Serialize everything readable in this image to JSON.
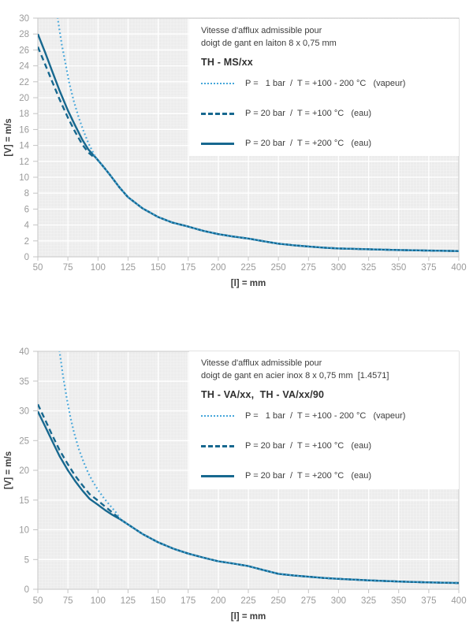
{
  "colors": {
    "plot_bg": "#ececec",
    "grid_minor": "#ffffff",
    "grid_major": "#ffffff",
    "frame": "#c4c4c4",
    "tick_label": "#9a9a9a",
    "axis_title": "#3c3c3c",
    "legend_text": "#3c3c3c",
    "line_dark": "#17688f",
    "line_light": "#45a6da"
  },
  "chart_data": [
    {
      "type": "line",
      "title_line1": "Vitesse d'afflux admissible pour",
      "title_line2": "doigt de gant en laiton 8 x 0,75 mm",
      "model": "TH - MS/xx",
      "xlabel": "[l] = mm",
      "ylabel": "[V] = m/s",
      "xlim": [
        50,
        400
      ],
      "ylim": [
        0,
        30
      ],
      "x_ticks": [
        50,
        75,
        100,
        125,
        150,
        175,
        200,
        225,
        250,
        275,
        300,
        325,
        350,
        375,
        400
      ],
      "y_ticks": [
        0,
        2,
        4,
        6,
        8,
        10,
        12,
        14,
        16,
        18,
        20,
        22,
        24,
        26,
        28,
        30
      ],
      "grid": true,
      "legend_position": "top-right",
      "series": [
        {
          "name": "P =   1 bar  /  T = +100 - 200 °C   (vapeur)",
          "style": "dotted",
          "color": "#45a6da",
          "points": [
            [
              64,
              33
            ],
            [
              67,
              29.5
            ],
            [
              70,
              26.6
            ],
            [
              73,
              24.3
            ],
            [
              76,
              21.9
            ],
            [
              80,
              19.5
            ],
            [
              84,
              17.5
            ],
            [
              88,
              15.8
            ],
            [
              92,
              14.3
            ],
            [
              95,
              13.4
            ],
            [
              98,
              12.5
            ],
            [
              103,
              11.6
            ],
            [
              110,
              10.3
            ],
            [
              118,
              8.7
            ],
            [
              125,
              7.5
            ],
            [
              137,
              6.1
            ],
            [
              150,
              5.0
            ],
            [
              162,
              4.3
            ],
            [
              175,
              3.8
            ],
            [
              188,
              3.25
            ],
            [
              200,
              2.85
            ],
            [
              212,
              2.55
            ],
            [
              225,
              2.3
            ],
            [
              238,
              1.95
            ],
            [
              250,
              1.65
            ],
            [
              263,
              1.45
            ],
            [
              275,
              1.3
            ],
            [
              288,
              1.15
            ],
            [
              300,
              1.05
            ],
            [
              313,
              1.0
            ],
            [
              325,
              0.95
            ],
            [
              350,
              0.85
            ],
            [
              375,
              0.78
            ],
            [
              400,
              0.72
            ]
          ]
        },
        {
          "name": "P = 20 bar  /  T = +100 °C   (eau)",
          "style": "dashed",
          "color": "#17688f",
          "points": [
            [
              50,
              26.4
            ],
            [
              56,
              24.2
            ],
            [
              62,
              22.0
            ],
            [
              68,
              19.8
            ],
            [
              75,
              17.5
            ],
            [
              81,
              15.7
            ],
            [
              87,
              14.1
            ],
            [
              92,
              13.1
            ],
            [
              96,
              12.6
            ],
            [
              98,
              12.5
            ],
            [
              103,
              11.6
            ],
            [
              110,
              10.3
            ],
            [
              118,
              8.7
            ],
            [
              125,
              7.5
            ],
            [
              137,
              6.1
            ],
            [
              150,
              5.0
            ],
            [
              162,
              4.3
            ],
            [
              175,
              3.8
            ],
            [
              188,
              3.25
            ],
            [
              200,
              2.85
            ],
            [
              212,
              2.55
            ],
            [
              225,
              2.3
            ],
            [
              238,
              1.95
            ],
            [
              250,
              1.65
            ],
            [
              263,
              1.45
            ],
            [
              275,
              1.3
            ],
            [
              288,
              1.15
            ],
            [
              300,
              1.05
            ],
            [
              313,
              1.0
            ],
            [
              325,
              0.95
            ],
            [
              350,
              0.85
            ],
            [
              375,
              0.78
            ],
            [
              400,
              0.72
            ]
          ]
        },
        {
          "name": "P = 20 bar  /  T = +200 °C   (eau)",
          "style": "solid",
          "color": "#17688f",
          "points": [
            [
              50,
              28
            ],
            [
              56,
              25.7
            ],
            [
              62,
              23.3
            ],
            [
              68,
              20.9
            ],
            [
              75,
              18.4
            ],
            [
              81,
              16.5
            ],
            [
              87,
              14.7
            ],
            [
              92,
              13.5
            ],
            [
              96,
              12.8
            ],
            [
              98,
              12.5
            ],
            [
              103,
              11.6
            ],
            [
              110,
              10.3
            ],
            [
              118,
              8.7
            ],
            [
              125,
              7.5
            ],
            [
              137,
              6.1
            ],
            [
              150,
              5.0
            ],
            [
              162,
              4.3
            ],
            [
              175,
              3.8
            ],
            [
              188,
              3.25
            ],
            [
              200,
              2.85
            ],
            [
              212,
              2.55
            ],
            [
              225,
              2.3
            ],
            [
              238,
              1.95
            ],
            [
              250,
              1.65
            ],
            [
              263,
              1.45
            ],
            [
              275,
              1.3
            ],
            [
              288,
              1.15
            ],
            [
              300,
              1.05
            ],
            [
              313,
              1.0
            ],
            [
              325,
              0.95
            ],
            [
              350,
              0.85
            ],
            [
              375,
              0.78
            ],
            [
              400,
              0.72
            ]
          ]
        }
      ]
    },
    {
      "type": "line",
      "title_line1": "Vitesse d'afflux admissible pour",
      "title_line2": "doigt de gant en acier inox 8 x 0,75 mm  [1.4571]",
      "model": "TH - VA/xx,  TH - VA/xx/90",
      "xlabel": "[l] = mm",
      "ylabel": "[V] = m/s",
      "xlim": [
        50,
        400
      ],
      "ylim": [
        0,
        40
      ],
      "x_ticks": [
        50,
        75,
        100,
        125,
        150,
        175,
        200,
        225,
        250,
        275,
        300,
        325,
        350,
        375,
        400
      ],
      "y_ticks": [
        0,
        5,
        10,
        15,
        20,
        25,
        30,
        35,
        40
      ],
      "grid": true,
      "legend_position": "top-right",
      "series": [
        {
          "name": "P =   1 bar  /  T = +100 - 200 °C   (vapeur)",
          "style": "dotted",
          "color": "#45a6da",
          "points": [
            [
              65,
              44
            ],
            [
              68,
              40
            ],
            [
              71,
              35.8
            ],
            [
              74,
              32.2
            ],
            [
              77,
              29.0
            ],
            [
              80,
              26.4
            ],
            [
              84,
              23.6
            ],
            [
              88,
              21.4
            ],
            [
              92,
              19.5
            ],
            [
              96,
              18.0
            ],
            [
              100,
              16.7
            ],
            [
              105,
              15.3
            ],
            [
              110,
              14.1
            ],
            [
              115,
              12.9
            ],
            [
              119,
              11.7
            ],
            [
              125,
              10.9
            ],
            [
              137,
              9.3
            ],
            [
              150,
              7.9
            ],
            [
              163,
              6.8
            ],
            [
              175,
              6.0
            ],
            [
              188,
              5.3
            ],
            [
              200,
              4.7
            ],
            [
              213,
              4.3
            ],
            [
              225,
              3.9
            ],
            [
              238,
              3.2
            ],
            [
              250,
              2.6
            ],
            [
              263,
              2.3
            ],
            [
              275,
              2.1
            ],
            [
              288,
              1.9
            ],
            [
              300,
              1.75
            ],
            [
              325,
              1.5
            ],
            [
              350,
              1.3
            ],
            [
              375,
              1.15
            ],
            [
              400,
              1.05
            ]
          ]
        },
        {
          "name": "P = 20 bar  /  T = +100 °C   (eau)",
          "style": "dashed",
          "color": "#17688f",
          "points": [
            [
              50,
              31.1
            ],
            [
              56,
              28.5
            ],
            [
              62,
              25.9
            ],
            [
              68,
              23.4
            ],
            [
              75,
              21.0
            ],
            [
              81,
              19.1
            ],
            [
              87,
              17.5
            ],
            [
              93,
              16.0
            ],
            [
              100,
              14.9
            ],
            [
              106,
              13.9
            ],
            [
              112,
              12.9
            ],
            [
              119,
              11.7
            ],
            [
              125,
              10.9
            ],
            [
              137,
              9.3
            ],
            [
              150,
              7.9
            ],
            [
              163,
              6.8
            ],
            [
              175,
              6.0
            ],
            [
              188,
              5.3
            ],
            [
              200,
              4.7
            ],
            [
              213,
              4.3
            ],
            [
              225,
              3.9
            ],
            [
              238,
              3.2
            ],
            [
              250,
              2.6
            ],
            [
              263,
              2.3
            ],
            [
              275,
              2.1
            ],
            [
              288,
              1.9
            ],
            [
              300,
              1.75
            ],
            [
              325,
              1.5
            ],
            [
              350,
              1.3
            ],
            [
              375,
              1.15
            ],
            [
              400,
              1.05
            ]
          ]
        },
        {
          "name": "P = 20 bar  /  T = +200 °C   (eau)",
          "style": "solid",
          "color": "#17688f",
          "points": [
            [
              50,
              29.9
            ],
            [
              56,
              27.4
            ],
            [
              62,
              24.9
            ],
            [
              68,
              22.4
            ],
            [
              75,
              20.0
            ],
            [
              81,
              18.2
            ],
            [
              87,
              16.6
            ],
            [
              93,
              15.2
            ],
            [
              100,
              14.2
            ],
            [
              106,
              13.3
            ],
            [
              112,
              12.5
            ],
            [
              119,
              11.7
            ],
            [
              125,
              10.9
            ],
            [
              137,
              9.3
            ],
            [
              150,
              7.9
            ],
            [
              163,
              6.8
            ],
            [
              175,
              6.0
            ],
            [
              188,
              5.3
            ],
            [
              200,
              4.7
            ],
            [
              213,
              4.3
            ],
            [
              225,
              3.9
            ],
            [
              238,
              3.2
            ],
            [
              250,
              2.6
            ],
            [
              263,
              2.3
            ],
            [
              275,
              2.1
            ],
            [
              288,
              1.9
            ],
            [
              300,
              1.75
            ],
            [
              325,
              1.5
            ],
            [
              350,
              1.3
            ],
            [
              375,
              1.15
            ],
            [
              400,
              1.05
            ]
          ]
        }
      ]
    }
  ]
}
